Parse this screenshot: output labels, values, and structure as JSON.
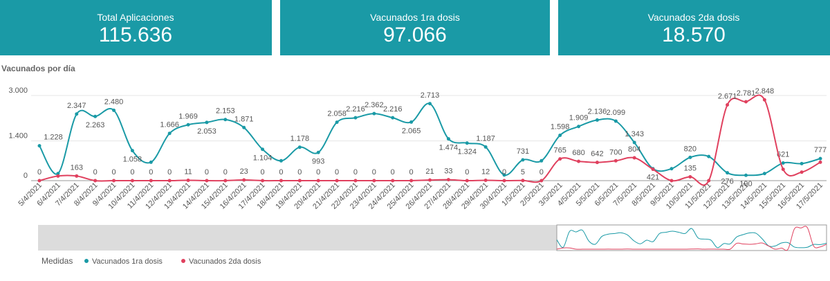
{
  "kpis": [
    {
      "title": "Total Aplicaciones",
      "value": "115.636"
    },
    {
      "title": "Vacunados 1ra dosis",
      "value": "97.066"
    },
    {
      "title": "Vacunados 2da dosis",
      "value": "18.570"
    }
  ],
  "chart_data": {
    "type": "line",
    "title": "Vacunados por día",
    "legend_title": "Medidas",
    "categories": [
      "5/4/2021",
      "6/4/2021",
      "7/4/2021",
      "8/4/2021",
      "9/4/2021",
      "10/4/2021",
      "11/4/2021",
      "12/4/2021",
      "13/4/2021",
      "14/4/2021",
      "15/4/2021",
      "16/4/2021",
      "17/4/2021",
      "18/4/2021",
      "19/4/2021",
      "20/4/2021",
      "21/4/2021",
      "22/4/2021",
      "23/4/2021",
      "24/4/2021",
      "25/4/2021",
      "26/4/2021",
      "27/4/2021",
      "28/4/2021",
      "29/4/2021",
      "30/4/2021",
      "1/5/2021",
      "2/5/2021",
      "3/5/2021",
      "4/5/2021",
      "5/5/2021",
      "6/5/2021",
      "7/5/2021",
      "8/5/2021",
      "9/5/2021",
      "10/5/2021",
      "11/5/2021",
      "12/5/2021",
      "13/5/2021",
      "14/5/2021",
      "15/5/2021",
      "16/5/2021",
      "17/5/2021"
    ],
    "series": [
      {
        "name": "Vacunados 1ra dosis",
        "color": "#1a9aa6",
        "values": [
          1228,
          250,
          2347,
          2263,
          2480,
          1058,
          650,
          1666,
          1969,
          2053,
          2153,
          1871,
          1104,
          700,
          1178,
          993,
          2058,
          2216,
          2362,
          2216,
          2065,
          2713,
          1474,
          1324,
          1187,
          200,
          731,
          700,
          1598,
          1909,
          2136,
          2099,
          1343,
          421,
          421,
          820,
          850,
          276,
          190,
          250,
          621,
          600,
          777
        ],
        "value_labels": [
          "1.228",
          null,
          "2.347",
          "2.263",
          "2.480",
          "1.058",
          null,
          "1.666",
          "1.969",
          "2.053",
          "2.153",
          "1.871",
          "1.104",
          null,
          "1.178",
          "993",
          "2.058",
          "2.216",
          "2.362",
          "2.216",
          "2.065",
          "2.713",
          "1.474",
          "1.324",
          "1.187",
          null,
          "731",
          null,
          "1.598",
          "1.909",
          "2.136",
          "2.099",
          "1.343",
          "421",
          null,
          "820",
          null,
          "276",
          "190",
          null,
          "621",
          null,
          "777"
        ]
      },
      {
        "name": "Vacunados 2da dosis",
        "color": "#e0405e",
        "values": [
          0,
          163,
          163,
          0,
          0,
          0,
          0,
          0,
          11,
          0,
          0,
          23,
          0,
          0,
          0,
          0,
          0,
          0,
          0,
          0,
          0,
          21,
          33,
          0,
          12,
          0,
          5,
          0,
          765,
          680,
          642,
          700,
          804,
          400,
          0,
          135,
          0,
          2671,
          2781,
          2848,
          400,
          300,
          650
        ],
        "value_labels": [
          "0",
          null,
          "163",
          "0",
          "0",
          "0",
          "0",
          "0",
          "11",
          "0",
          "0",
          "23",
          "0",
          "0",
          "0",
          "0",
          "0",
          "0",
          "0",
          "0",
          "0",
          "21",
          "33",
          "0",
          "12",
          "0",
          "5",
          "0",
          "765",
          "680",
          "642",
          "700",
          "804",
          null,
          null,
          "135",
          null,
          "2.671",
          "2.781",
          "2.848",
          null,
          null,
          null
        ]
      }
    ],
    "ylim": [
      0,
      3000
    ],
    "yticks": [
      0,
      {
        "value": 1400,
        "label": "1.400"
      },
      {
        "value": 3000,
        "label": "3.000"
      }
    ],
    "grid": true
  }
}
